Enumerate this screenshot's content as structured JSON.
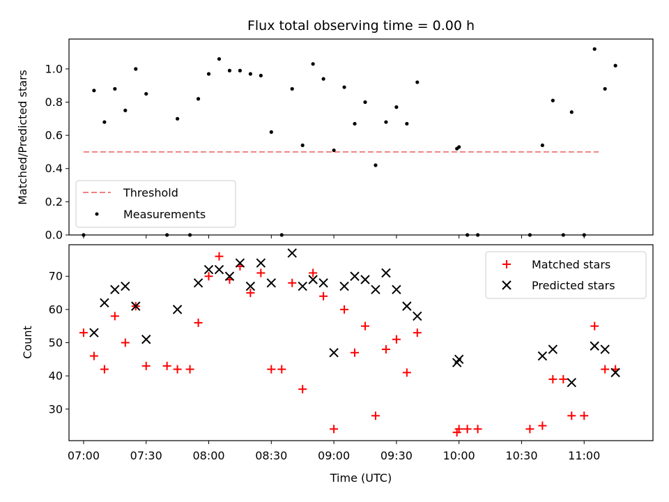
{
  "chart_data": [
    {
      "type": "scatter",
      "title": "Flux total observing time = 0.00 h",
      "xlabel": "",
      "ylabel": "Matched/Predicted stars",
      "xlim": [
        "06:53",
        "11:33"
      ],
      "ylim": [
        0.0,
        1.18
      ],
      "yticks": [
        "0.0",
        "0.2",
        "0.4",
        "0.6",
        "0.8",
        "1.0"
      ],
      "grid": false,
      "legend": {
        "location": "lower-left",
        "entries": [
          "Threshold",
          "Measurements"
        ]
      },
      "threshold": {
        "name": "Threshold",
        "value": 0.5,
        "x_start": "07:00",
        "x_end": "11:07",
        "color": "#f08080",
        "style": "dashed"
      },
      "series": [
        {
          "name": "Measurements",
          "color": "#000000",
          "marker": "dot",
          "points": [
            [
              "07:00",
              0.0
            ],
            [
              "07:05",
              0.87
            ],
            [
              "07:10",
              0.68
            ],
            [
              "07:15",
              0.88
            ],
            [
              "07:20",
              0.75
            ],
            [
              "07:25",
              1.0
            ],
            [
              "07:30",
              0.85
            ],
            [
              "07:40",
              0.0
            ],
            [
              "07:45",
              0.7
            ],
            [
              "07:51",
              0.0
            ],
            [
              "07:55",
              0.82
            ],
            [
              "08:00",
              0.97
            ],
            [
              "08:05",
              1.06
            ],
            [
              "08:10",
              0.99
            ],
            [
              "08:15",
              0.99
            ],
            [
              "08:20",
              0.97
            ],
            [
              "08:25",
              0.96
            ],
            [
              "08:30",
              0.62
            ],
            [
              "08:35",
              0.0
            ],
            [
              "08:40",
              0.88
            ],
            [
              "08:45",
              0.54
            ],
            [
              "08:50",
              1.03
            ],
            [
              "08:55",
              0.94
            ],
            [
              "09:00",
              0.51
            ],
            [
              "09:05",
              0.89
            ],
            [
              "09:10",
              0.67
            ],
            [
              "09:15",
              0.8
            ],
            [
              "09:20",
              0.42
            ],
            [
              "09:25",
              0.68
            ],
            [
              "09:30",
              0.77
            ],
            [
              "09:35",
              0.67
            ],
            [
              "09:40",
              0.92
            ],
            [
              "09:59",
              0.52
            ],
            [
              "10:00",
              0.53
            ],
            [
              "10:04",
              0.0
            ],
            [
              "10:09",
              0.0
            ],
            [
              "10:34",
              0.0
            ],
            [
              "10:40",
              0.54
            ],
            [
              "10:45",
              0.81
            ],
            [
              "10:50",
              0.0
            ],
            [
              "10:54",
              0.74
            ],
            [
              "11:00",
              0.0
            ],
            [
              "11:05",
              1.12
            ],
            [
              "11:10",
              0.88
            ],
            [
              "11:15",
              1.02
            ]
          ]
        }
      ]
    },
    {
      "type": "scatter",
      "title": "",
      "xlabel": "Time (UTC)",
      "ylabel": "Count",
      "xlim": [
        "06:53",
        "11:33"
      ],
      "ylim": [
        20.5,
        79.5
      ],
      "xticks": [
        "07:00",
        "07:30",
        "08:00",
        "08:30",
        "09:00",
        "09:30",
        "10:00",
        "10:30",
        "11:00"
      ],
      "yticks": [
        "30",
        "40",
        "50",
        "60",
        "70"
      ],
      "grid": false,
      "legend": {
        "location": "top-right",
        "entries": [
          "Matched stars",
          "Predicted stars"
        ]
      },
      "series": [
        {
          "name": "Matched stars",
          "color": "#ff0000",
          "marker": "plus",
          "points": [
            [
              "07:00",
              53
            ],
            [
              "07:05",
              46
            ],
            [
              "07:10",
              42
            ],
            [
              "07:15",
              58
            ],
            [
              "07:20",
              50
            ],
            [
              "07:25",
              61
            ],
            [
              "07:30",
              43
            ],
            [
              "07:40",
              43
            ],
            [
              "07:45",
              42
            ],
            [
              "07:51",
              42
            ],
            [
              "07:55",
              56
            ],
            [
              "08:00",
              70
            ],
            [
              "08:05",
              76
            ],
            [
              "08:10",
              69
            ],
            [
              "08:15",
              73
            ],
            [
              "08:20",
              65
            ],
            [
              "08:25",
              71
            ],
            [
              "08:30",
              42
            ],
            [
              "08:35",
              42
            ],
            [
              "08:40",
              68
            ],
            [
              "08:45",
              36
            ],
            [
              "08:50",
              71
            ],
            [
              "08:55",
              64
            ],
            [
              "09:00",
              24
            ],
            [
              "09:05",
              60
            ],
            [
              "09:10",
              47
            ],
            [
              "09:15",
              55
            ],
            [
              "09:20",
              28
            ],
            [
              "09:25",
              48
            ],
            [
              "09:30",
              51
            ],
            [
              "09:35",
              41
            ],
            [
              "09:40",
              53
            ],
            [
              "09:59",
              23
            ],
            [
              "10:00",
              24
            ],
            [
              "10:04",
              24
            ],
            [
              "10:09",
              24
            ],
            [
              "10:34",
              24
            ],
            [
              "10:40",
              25
            ],
            [
              "10:45",
              39
            ],
            [
              "10:50",
              39
            ],
            [
              "10:54",
              28
            ],
            [
              "11:00",
              28
            ],
            [
              "11:05",
              55
            ],
            [
              "11:10",
              42
            ],
            [
              "11:15",
              42
            ]
          ]
        },
        {
          "name": "Predicted stars",
          "color": "#000000",
          "marker": "x",
          "points": [
            [
              "07:05",
              53
            ],
            [
              "07:10",
              62
            ],
            [
              "07:15",
              66
            ],
            [
              "07:20",
              67
            ],
            [
              "07:25",
              61
            ],
            [
              "07:30",
              51
            ],
            [
              "07:45",
              60
            ],
            [
              "07:55",
              68
            ],
            [
              "08:00",
              72
            ],
            [
              "08:05",
              72
            ],
            [
              "08:10",
              70
            ],
            [
              "08:15",
              74
            ],
            [
              "08:20",
              67
            ],
            [
              "08:25",
              74
            ],
            [
              "08:30",
              68
            ],
            [
              "08:40",
              77
            ],
            [
              "08:45",
              67
            ],
            [
              "08:50",
              69
            ],
            [
              "08:55",
              68
            ],
            [
              "09:00",
              47
            ],
            [
              "09:05",
              67
            ],
            [
              "09:10",
              70
            ],
            [
              "09:15",
              69
            ],
            [
              "09:20",
              66
            ],
            [
              "09:25",
              71
            ],
            [
              "09:30",
              66
            ],
            [
              "09:35",
              61
            ],
            [
              "09:40",
              58
            ],
            [
              "09:59",
              44
            ],
            [
              "10:00",
              45
            ],
            [
              "10:40",
              46
            ],
            [
              "10:45",
              48
            ],
            [
              "10:54",
              38
            ],
            [
              "11:05",
              49
            ],
            [
              "11:10",
              48
            ],
            [
              "11:15",
              41
            ]
          ]
        }
      ]
    }
  ]
}
